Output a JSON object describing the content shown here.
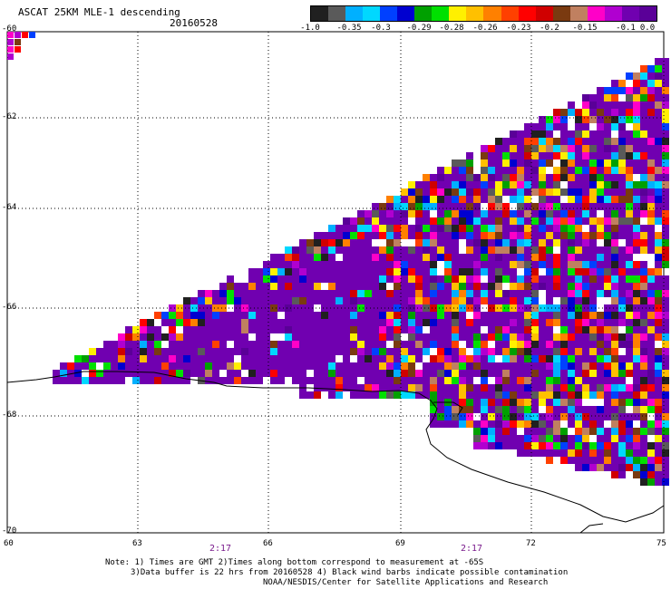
{
  "header": {
    "title": "ASCAT 25KM MLE-1 descending",
    "date": "20160528"
  },
  "colorbar": {
    "colors": [
      "#202020",
      "#5a5a5a",
      "#00b0ff",
      "#00d8ff",
      "#0040ff",
      "#0000d0",
      "#00a000",
      "#00e000",
      "#fff000",
      "#ffc000",
      "#ff8000",
      "#ff4000",
      "#ff0000",
      "#d00000",
      "#7a3a10",
      "#c08060",
      "#ff00c8",
      "#b000d0",
      "#7000b0",
      "#5a0098"
    ],
    "ticks": [
      "-1.0",
      "-0.35",
      "-0.3",
      "-0.29",
      "-0.28",
      "-0.26",
      "-0.23",
      "-0.2",
      "-0.15",
      "-0.1",
      "0.0"
    ]
  },
  "axes": {
    "lat_ticks": [
      "-60",
      "-62",
      "-64",
      "-66",
      "-68",
      "-70"
    ],
    "lon_ticks": [
      "60",
      "63",
      "66",
      "69",
      "72",
      "75"
    ]
  },
  "times": [
    "2:17",
    "2:17"
  ],
  "notes": [
    "Note: 1) Times are GMT 2)Times along bottom correspond to measurement at -65S",
    "3)Data buffer is 22 hrs from 20160528 4) Black wind barbs indicate possible contamination",
    "NOAA/NESDIS/Center for Satellite Applications and Research"
  ]
}
